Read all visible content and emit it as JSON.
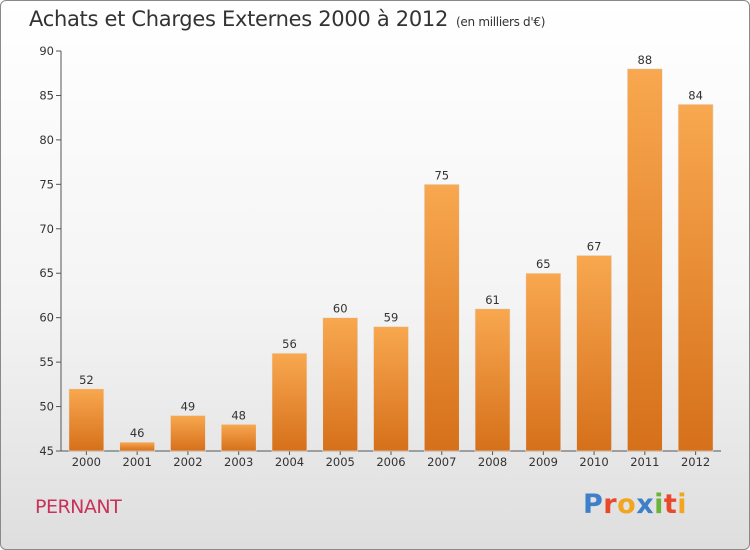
{
  "header": {
    "title": "Achats et Charges Externes 2000 à 2012",
    "subtitle": "(en milliers d'€)"
  },
  "footer": {
    "location": "PERNANT",
    "brand": "Proxiti"
  },
  "colors": {
    "bar_top": "#f8a850",
    "bar_bottom": "#d6701a",
    "brand_letters": [
      "#3d7fc8",
      "#e8492b",
      "#f2a51e",
      "#3d7fc8",
      "#6bb43a",
      "#e8492b",
      "#f2a51e"
    ]
  },
  "chart_data": {
    "type": "bar",
    "title": "Achats et Charges Externes 2000 à 2012",
    "subtitle": "(en milliers d'€)",
    "categories": [
      "2000",
      "2001",
      "2002",
      "2003",
      "2004",
      "2005",
      "2006",
      "2007",
      "2008",
      "2009",
      "2010",
      "2011",
      "2012"
    ],
    "values": [
      52,
      46,
      49,
      48,
      56,
      60,
      59,
      75,
      61,
      65,
      67,
      88,
      84
    ],
    "ylim": [
      45,
      90
    ],
    "yticks": [
      45,
      50,
      55,
      60,
      65,
      70,
      75,
      80,
      85,
      90
    ],
    "grid": false,
    "legend": "none"
  }
}
